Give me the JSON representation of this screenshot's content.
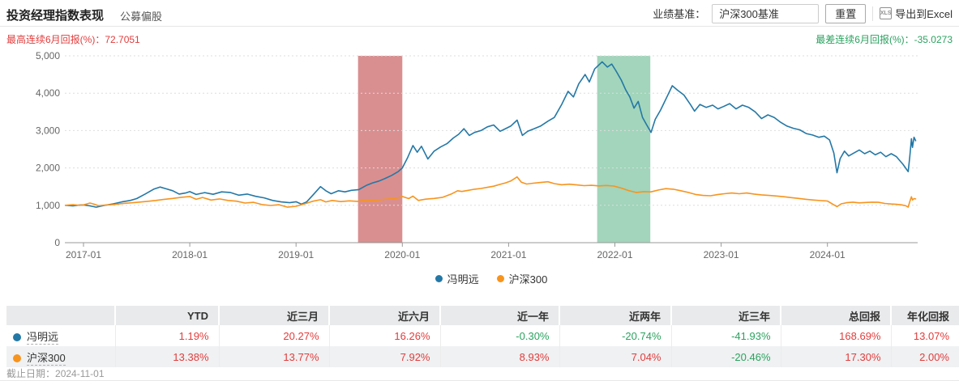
{
  "header": {
    "title": "投资经理指数表现",
    "subtitle": "公募偏股",
    "benchmark_label": "业绩基准：",
    "benchmark_value": "沪深300基准",
    "reset_label": "重置",
    "xls_icon_text": "XLS",
    "export_label": "导出到Excel"
  },
  "stats": {
    "best_label": "最高连续6月回报(%)：",
    "best_value": "72.7051",
    "worst_label": "最差连续6月回报(%)：",
    "worst_value": "-35.0273"
  },
  "colors": {
    "series_blue": "#2478a6",
    "series_orange": "#f7941e",
    "band_red": "#d98f90",
    "band_green": "#a2d5bb",
    "positive_text": "#e23c3c",
    "negative_text": "#2ba25f"
  },
  "legend": [
    {
      "name": "冯明远",
      "color": "#2478a6"
    },
    {
      "name": "沪深300",
      "color": "#f7941e"
    }
  ],
  "chart_data": {
    "type": "line",
    "x_axis": {
      "t_unit": "years since 2017-01",
      "ticks": [
        {
          "t": 0,
          "label": "2017-01"
        },
        {
          "t": 1,
          "label": "2018-01"
        },
        {
          "t": 2,
          "label": "2019-01"
        },
        {
          "t": 3,
          "label": "2020-01"
        },
        {
          "t": 4,
          "label": "2021-01"
        },
        {
          "t": 5,
          "label": "2022-01"
        },
        {
          "t": 6,
          "label": "2023-01"
        },
        {
          "t": 7,
          "label": "2024-01"
        }
      ]
    },
    "y_axis": {
      "range": [
        0,
        5000
      ],
      "ticks": [
        {
          "value": 0,
          "label": "0"
        },
        {
          "value": 1000,
          "label": "1,000"
        },
        {
          "value": 2000,
          "label": "2,000"
        },
        {
          "value": 3000,
          "label": "3,000"
        },
        {
          "value": 4000,
          "label": "4,000"
        },
        {
          "value": 5000,
          "label": "5,000"
        }
      ]
    },
    "bands": [
      {
        "name": "best-6m-window",
        "from": "2019-08",
        "to": "2020-01",
        "color": "#d98f90"
      },
      {
        "name": "worst-6m-window",
        "from": "2021-11",
        "to": "2022-05",
        "color": "#a2d5bb"
      }
    ],
    "series": [
      {
        "name": "冯明远",
        "color": "#2478a6",
        "points": [
          [
            -0.17,
            1000
          ],
          [
            -0.1,
            985
          ],
          [
            -0.04,
            1005
          ],
          [
            0.0,
            1010
          ],
          [
            0.06,
            985
          ],
          [
            0.12,
            950
          ],
          [
            0.2,
            1000
          ],
          [
            0.28,
            1040
          ],
          [
            0.36,
            1090
          ],
          [
            0.44,
            1130
          ],
          [
            0.5,
            1180
          ],
          [
            0.58,
            1300
          ],
          [
            0.66,
            1430
          ],
          [
            0.72,
            1490
          ],
          [
            0.78,
            1440
          ],
          [
            0.84,
            1390
          ],
          [
            0.9,
            1300
          ],
          [
            0.96,
            1330
          ],
          [
            1.0,
            1365
          ],
          [
            1.06,
            1290
          ],
          [
            1.14,
            1340
          ],
          [
            1.22,
            1295
          ],
          [
            1.3,
            1360
          ],
          [
            1.38,
            1345
          ],
          [
            1.46,
            1270
          ],
          [
            1.54,
            1300
          ],
          [
            1.62,
            1240
          ],
          [
            1.7,
            1200
          ],
          [
            1.78,
            1130
          ],
          [
            1.86,
            1090
          ],
          [
            1.94,
            1070
          ],
          [
            2.0,
            1095
          ],
          [
            2.05,
            1030
          ],
          [
            2.1,
            1090
          ],
          [
            2.16,
            1280
          ],
          [
            2.23,
            1500
          ],
          [
            2.28,
            1390
          ],
          [
            2.33,
            1310
          ],
          [
            2.4,
            1390
          ],
          [
            2.46,
            1360
          ],
          [
            2.52,
            1400
          ],
          [
            2.59,
            1420
          ],
          [
            2.66,
            1530
          ],
          [
            2.72,
            1600
          ],
          [
            2.78,
            1650
          ],
          [
            2.84,
            1720
          ],
          [
            2.9,
            1800
          ],
          [
            2.96,
            1900
          ],
          [
            3.0,
            2000
          ],
          [
            3.05,
            2280
          ],
          [
            3.1,
            2600
          ],
          [
            3.14,
            2420
          ],
          [
            3.18,
            2580
          ],
          [
            3.24,
            2240
          ],
          [
            3.3,
            2450
          ],
          [
            3.36,
            2560
          ],
          [
            3.42,
            2650
          ],
          [
            3.48,
            2800
          ],
          [
            3.53,
            2900
          ],
          [
            3.58,
            3050
          ],
          [
            3.63,
            2870
          ],
          [
            3.68,
            2950
          ],
          [
            3.74,
            3000
          ],
          [
            3.8,
            3100
          ],
          [
            3.86,
            3150
          ],
          [
            3.92,
            2980
          ],
          [
            3.97,
            3050
          ],
          [
            4.02,
            3120
          ],
          [
            4.08,
            3280
          ],
          [
            4.13,
            2870
          ],
          [
            4.18,
            2980
          ],
          [
            4.24,
            3050
          ],
          [
            4.3,
            3120
          ],
          [
            4.37,
            3250
          ],
          [
            4.43,
            3350
          ],
          [
            4.5,
            3700
          ],
          [
            4.56,
            4050
          ],
          [
            4.61,
            3900
          ],
          [
            4.66,
            4250
          ],
          [
            4.72,
            4500
          ],
          [
            4.76,
            4300
          ],
          [
            4.81,
            4650
          ],
          [
            4.88,
            4840
          ],
          [
            4.93,
            4700
          ],
          [
            4.97,
            4780
          ],
          [
            5.01,
            4600
          ],
          [
            5.06,
            4350
          ],
          [
            5.1,
            4100
          ],
          [
            5.14,
            3900
          ],
          [
            5.18,
            3600
          ],
          [
            5.22,
            3780
          ],
          [
            5.26,
            3350
          ],
          [
            5.3,
            3150
          ],
          [
            5.34,
            2950
          ],
          [
            5.38,
            3300
          ],
          [
            5.43,
            3550
          ],
          [
            5.49,
            3900
          ],
          [
            5.54,
            4200
          ],
          [
            5.59,
            4080
          ],
          [
            5.65,
            3950
          ],
          [
            5.71,
            3700
          ],
          [
            5.75,
            3520
          ],
          [
            5.8,
            3700
          ],
          [
            5.86,
            3620
          ],
          [
            5.92,
            3680
          ],
          [
            5.97,
            3580
          ],
          [
            6.02,
            3640
          ],
          [
            6.08,
            3720
          ],
          [
            6.14,
            3580
          ],
          [
            6.2,
            3680
          ],
          [
            6.26,
            3620
          ],
          [
            6.32,
            3500
          ],
          [
            6.38,
            3320
          ],
          [
            6.44,
            3420
          ],
          [
            6.5,
            3350
          ],
          [
            6.56,
            3220
          ],
          [
            6.62,
            3120
          ],
          [
            6.68,
            3060
          ],
          [
            6.74,
            3020
          ],
          [
            6.8,
            2920
          ],
          [
            6.86,
            2880
          ],
          [
            6.92,
            2820
          ],
          [
            6.97,
            2850
          ],
          [
            7.02,
            2750
          ],
          [
            7.06,
            2400
          ],
          [
            7.09,
            1870
          ],
          [
            7.12,
            2250
          ],
          [
            7.16,
            2450
          ],
          [
            7.2,
            2320
          ],
          [
            7.25,
            2400
          ],
          [
            7.3,
            2480
          ],
          [
            7.35,
            2380
          ],
          [
            7.4,
            2450
          ],
          [
            7.45,
            2350
          ],
          [
            7.5,
            2420
          ],
          [
            7.55,
            2300
          ],
          [
            7.6,
            2380
          ],
          [
            7.65,
            2300
          ],
          [
            7.68,
            2200
          ],
          [
            7.71,
            2100
          ],
          [
            7.74,
            1980
          ],
          [
            7.76,
            1900
          ],
          [
            7.775,
            2300
          ],
          [
            7.79,
            2780
          ],
          [
            7.8,
            2550
          ],
          [
            7.815,
            2820
          ],
          [
            7.83,
            2730
          ]
        ]
      },
      {
        "name": "沪深300",
        "color": "#f7941e",
        "points": [
          [
            -0.17,
            1000
          ],
          [
            -0.1,
            1015
          ],
          [
            -0.04,
            1000
          ],
          [
            0.0,
            1010
          ],
          [
            0.06,
            1060
          ],
          [
            0.1,
            1030
          ],
          [
            0.14,
            990
          ],
          [
            0.2,
            1005
          ],
          [
            0.28,
            1020
          ],
          [
            0.36,
            1045
          ],
          [
            0.44,
            1065
          ],
          [
            0.52,
            1085
          ],
          [
            0.6,
            1105
          ],
          [
            0.68,
            1130
          ],
          [
            0.76,
            1160
          ],
          [
            0.84,
            1185
          ],
          [
            0.92,
            1215
          ],
          [
            1.0,
            1235
          ],
          [
            1.06,
            1160
          ],
          [
            1.12,
            1210
          ],
          [
            1.2,
            1140
          ],
          [
            1.28,
            1170
          ],
          [
            1.36,
            1130
          ],
          [
            1.44,
            1110
          ],
          [
            1.52,
            1060
          ],
          [
            1.6,
            1080
          ],
          [
            1.68,
            1020
          ],
          [
            1.76,
            995
          ],
          [
            1.84,
            1015
          ],
          [
            1.92,
            950
          ],
          [
            2.0,
            975
          ],
          [
            2.08,
            1040
          ],
          [
            2.16,
            1110
          ],
          [
            2.23,
            1150
          ],
          [
            2.28,
            1090
          ],
          [
            2.34,
            1130
          ],
          [
            2.42,
            1100
          ],
          [
            2.5,
            1120
          ],
          [
            2.58,
            1105
          ],
          [
            2.66,
            1135
          ],
          [
            2.74,
            1125
          ],
          [
            2.82,
            1155
          ],
          [
            2.9,
            1175
          ],
          [
            2.96,
            1200
          ],
          [
            3.0,
            1235
          ],
          [
            3.06,
            1180
          ],
          [
            3.1,
            1245
          ],
          [
            3.15,
            1130
          ],
          [
            3.22,
            1165
          ],
          [
            3.3,
            1185
          ],
          [
            3.38,
            1215
          ],
          [
            3.46,
            1300
          ],
          [
            3.52,
            1390
          ],
          [
            3.56,
            1370
          ],
          [
            3.62,
            1400
          ],
          [
            3.68,
            1430
          ],
          [
            3.74,
            1450
          ],
          [
            3.8,
            1480
          ],
          [
            3.86,
            1510
          ],
          [
            3.92,
            1560
          ],
          [
            3.97,
            1600
          ],
          [
            4.02,
            1650
          ],
          [
            4.08,
            1760
          ],
          [
            4.12,
            1620
          ],
          [
            4.17,
            1570
          ],
          [
            4.23,
            1590
          ],
          [
            4.3,
            1610
          ],
          [
            4.37,
            1630
          ],
          [
            4.43,
            1580
          ],
          [
            4.5,
            1550
          ],
          [
            4.57,
            1565
          ],
          [
            4.64,
            1545
          ],
          [
            4.71,
            1525
          ],
          [
            4.78,
            1535
          ],
          [
            4.85,
            1520
          ],
          [
            4.92,
            1530
          ],
          [
            4.99,
            1515
          ],
          [
            5.06,
            1460
          ],
          [
            5.13,
            1395
          ],
          [
            5.2,
            1345
          ],
          [
            5.27,
            1365
          ],
          [
            5.34,
            1360
          ],
          [
            5.41,
            1410
          ],
          [
            5.48,
            1445
          ],
          [
            5.55,
            1430
          ],
          [
            5.62,
            1390
          ],
          [
            5.69,
            1345
          ],
          [
            5.76,
            1290
          ],
          [
            5.83,
            1265
          ],
          [
            5.9,
            1255
          ],
          [
            5.97,
            1290
          ],
          [
            6.03,
            1310
          ],
          [
            6.1,
            1330
          ],
          [
            6.17,
            1310
          ],
          [
            6.24,
            1330
          ],
          [
            6.31,
            1300
          ],
          [
            6.38,
            1280
          ],
          [
            6.45,
            1265
          ],
          [
            6.52,
            1250
          ],
          [
            6.59,
            1230
          ],
          [
            6.66,
            1205
          ],
          [
            6.73,
            1185
          ],
          [
            6.8,
            1160
          ],
          [
            6.87,
            1140
          ],
          [
            6.94,
            1125
          ],
          [
            7.0,
            1115
          ],
          [
            7.05,
            1030
          ],
          [
            7.09,
            965
          ],
          [
            7.13,
            1040
          ],
          [
            7.18,
            1070
          ],
          [
            7.24,
            1085
          ],
          [
            7.3,
            1065
          ],
          [
            7.36,
            1075
          ],
          [
            7.42,
            1085
          ],
          [
            7.48,
            1080
          ],
          [
            7.54,
            1050
          ],
          [
            7.6,
            1035
          ],
          [
            7.65,
            1025
          ],
          [
            7.7,
            1010
          ],
          [
            7.74,
            985
          ],
          [
            7.76,
            950
          ],
          [
            7.775,
            1100
          ],
          [
            7.79,
            1230
          ],
          [
            7.8,
            1140
          ],
          [
            7.815,
            1180
          ],
          [
            7.83,
            1170
          ]
        ]
      }
    ]
  },
  "table": {
    "headers": [
      "",
      "YTD",
      "近三月",
      "近六月",
      "近一年",
      "近两年",
      "近三年",
      "总回报",
      "年化回报"
    ],
    "rows": [
      {
        "name": "冯明远",
        "dot_color": "#2478a6",
        "values": [
          "1.19%",
          "20.27%",
          "16.26%",
          "-0.30%",
          "-20.74%",
          "-41.93%",
          "168.69%",
          "13.07%"
        ]
      },
      {
        "name": "沪深300",
        "dot_color": "#f7941e",
        "values": [
          "13.38%",
          "13.77%",
          "7.92%",
          "8.93%",
          "7.04%",
          "-20.46%",
          "17.30%",
          "2.00%"
        ]
      }
    ]
  },
  "footer": {
    "as_of_label": "截止日期：",
    "as_of_date": "2024-11-01"
  }
}
